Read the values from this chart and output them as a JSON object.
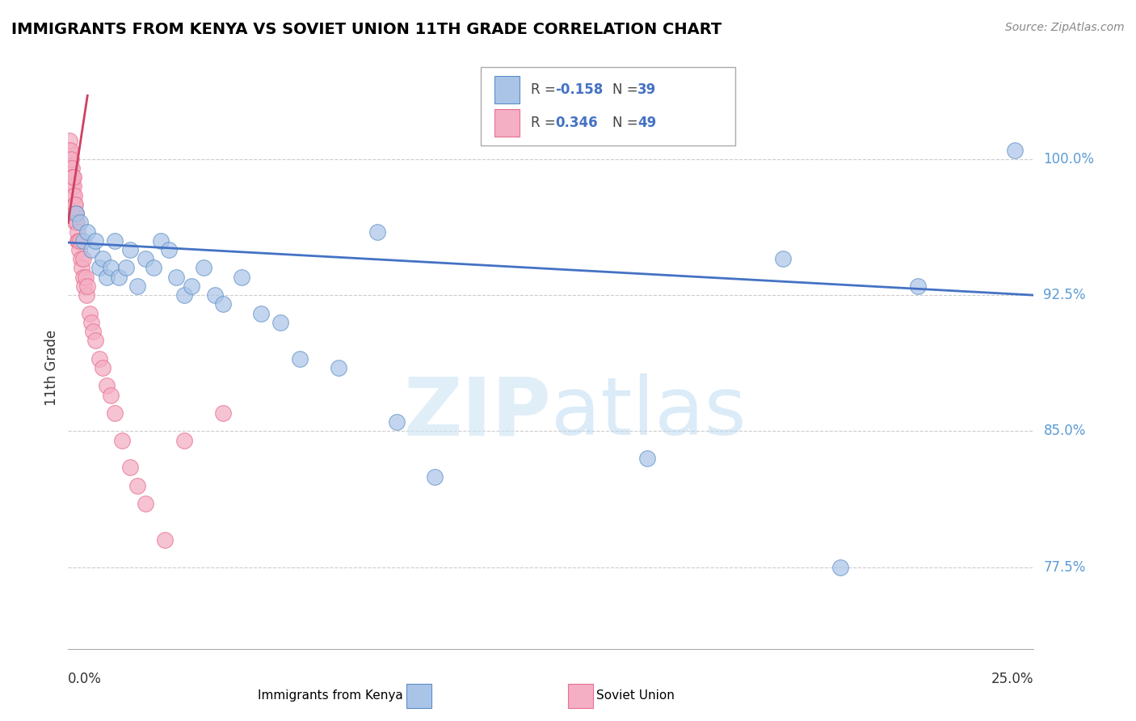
{
  "title": "IMMIGRANTS FROM KENYA VS SOVIET UNION 11TH GRADE CORRELATION CHART",
  "source": "Source: ZipAtlas.com",
  "ylabel": "11th Grade",
  "y_ticks": [
    77.5,
    85.0,
    92.5,
    100.0
  ],
  "y_tick_labels": [
    "77.5%",
    "85.0%",
    "92.5%",
    "100.0%"
  ],
  "xlim": [
    0.0,
    25.0
  ],
  "ylim": [
    73.0,
    104.0
  ],
  "kenya_color": "#aac4e8",
  "kenya_edge": "#5b8ec4",
  "soviet_color": "#f4afc4",
  "soviet_edge": "#e87090",
  "trend_kenya_color": "#4472c4",
  "trend_soviet_color": "#d04060",
  "kenya_points_x": [
    0.2,
    0.3,
    0.4,
    0.5,
    0.6,
    0.7,
    0.8,
    0.9,
    1.0,
    1.1,
    1.2,
    1.3,
    1.5,
    1.6,
    1.8,
    2.0,
    2.2,
    2.4,
    2.6,
    2.8,
    3.0,
    3.2,
    3.5,
    3.8,
    4.0,
    4.5,
    5.0,
    5.5,
    6.0,
    7.0,
    8.0,
    8.5,
    9.5,
    15.0,
    18.5,
    20.0,
    22.0,
    24.5
  ],
  "kenya_points_y": [
    97.0,
    96.5,
    95.5,
    96.0,
    95.0,
    95.5,
    94.0,
    94.5,
    93.5,
    94.0,
    95.5,
    93.5,
    94.0,
    95.0,
    93.0,
    94.5,
    94.0,
    95.5,
    95.0,
    93.5,
    92.5,
    93.0,
    94.0,
    92.5,
    92.0,
    93.5,
    91.5,
    91.0,
    89.0,
    88.5,
    96.0,
    85.5,
    82.5,
    83.5,
    94.5,
    77.5,
    93.0,
    100.5
  ],
  "soviet_points_x": [
    0.02,
    0.03,
    0.04,
    0.05,
    0.06,
    0.07,
    0.08,
    0.09,
    0.1,
    0.11,
    0.12,
    0.13,
    0.14,
    0.15,
    0.16,
    0.17,
    0.18,
    0.19,
    0.2,
    0.22,
    0.24,
    0.25,
    0.27,
    0.28,
    0.3,
    0.32,
    0.35,
    0.38,
    0.4,
    0.42,
    0.45,
    0.48,
    0.5,
    0.55,
    0.6,
    0.65,
    0.7,
    0.8,
    0.9,
    1.0,
    1.1,
    1.2,
    1.4,
    1.6,
    1.8,
    2.0,
    2.5,
    3.0,
    4.0
  ],
  "soviet_points_y": [
    100.5,
    101.0,
    100.0,
    99.5,
    100.5,
    99.0,
    100.0,
    98.5,
    99.5,
    98.0,
    99.0,
    98.5,
    99.0,
    97.5,
    98.0,
    97.0,
    97.5,
    96.5,
    97.0,
    96.5,
    95.5,
    96.0,
    95.5,
    95.0,
    95.5,
    94.5,
    94.0,
    94.5,
    93.5,
    93.0,
    93.5,
    92.5,
    93.0,
    91.5,
    91.0,
    90.5,
    90.0,
    89.0,
    88.5,
    87.5,
    87.0,
    86.0,
    84.5,
    83.0,
    82.0,
    81.0,
    79.0,
    84.5,
    86.0
  ]
}
